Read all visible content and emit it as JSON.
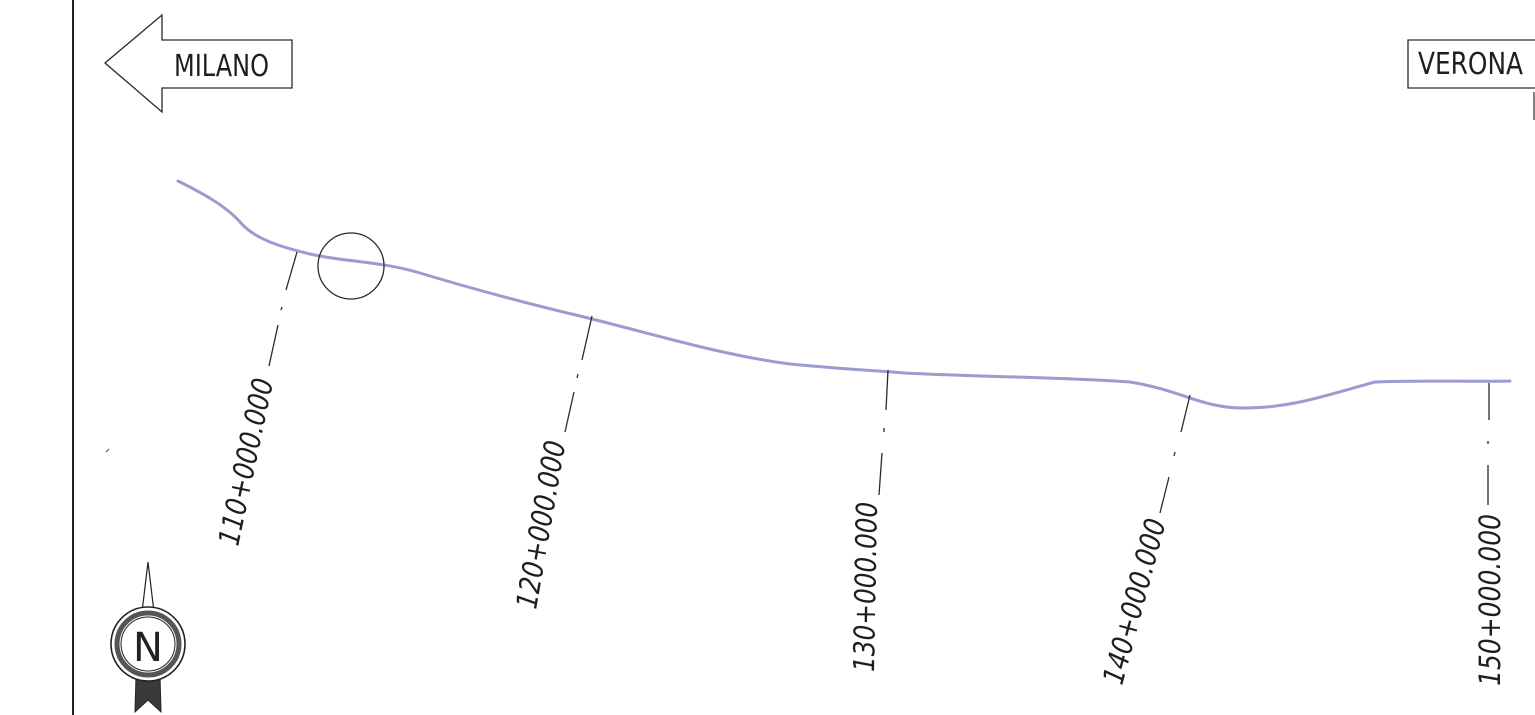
{
  "map": {
    "direction_west": {
      "label": "MILANO",
      "icon": "arrow-left-icon"
    },
    "direction_east": {
      "label": "VERONA"
    },
    "colors": {
      "route": "#9a9ccf",
      "ink": "#2a2a2a",
      "background": "#ffffff"
    },
    "chainages": [
      {
        "label": "110+000.000"
      },
      {
        "label": "120+000.000"
      },
      {
        "label": "130+000.000"
      },
      {
        "label": "140+000.000"
      },
      {
        "label": "150+000.000"
      }
    ],
    "north_arrow": {
      "label": "N",
      "icon": "north-arrow-icon"
    }
  }
}
